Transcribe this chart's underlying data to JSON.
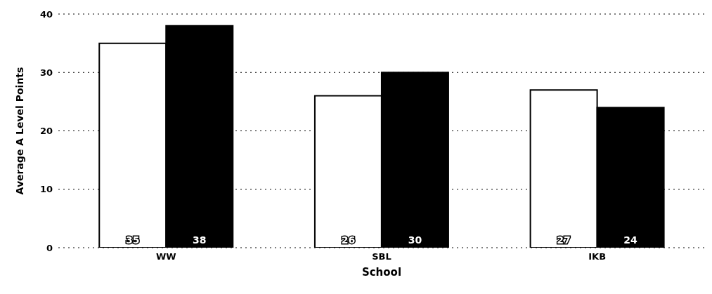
{
  "chart_data": {
    "type": "bar",
    "xlabel": "School",
    "ylabel": "Average A Level Points",
    "categories": [
      "WW",
      "SBL",
      "IKB"
    ],
    "series": [
      {
        "color": "#ffffff",
        "values": [
          35,
          26,
          27
        ]
      },
      {
        "color": "#000000",
        "values": [
          38,
          30,
          24
        ]
      }
    ],
    "ylim": [
      0,
      40
    ],
    "yticks": [
      0,
      10,
      20,
      30,
      40
    ],
    "grid": "y",
    "data_labels": true
  }
}
